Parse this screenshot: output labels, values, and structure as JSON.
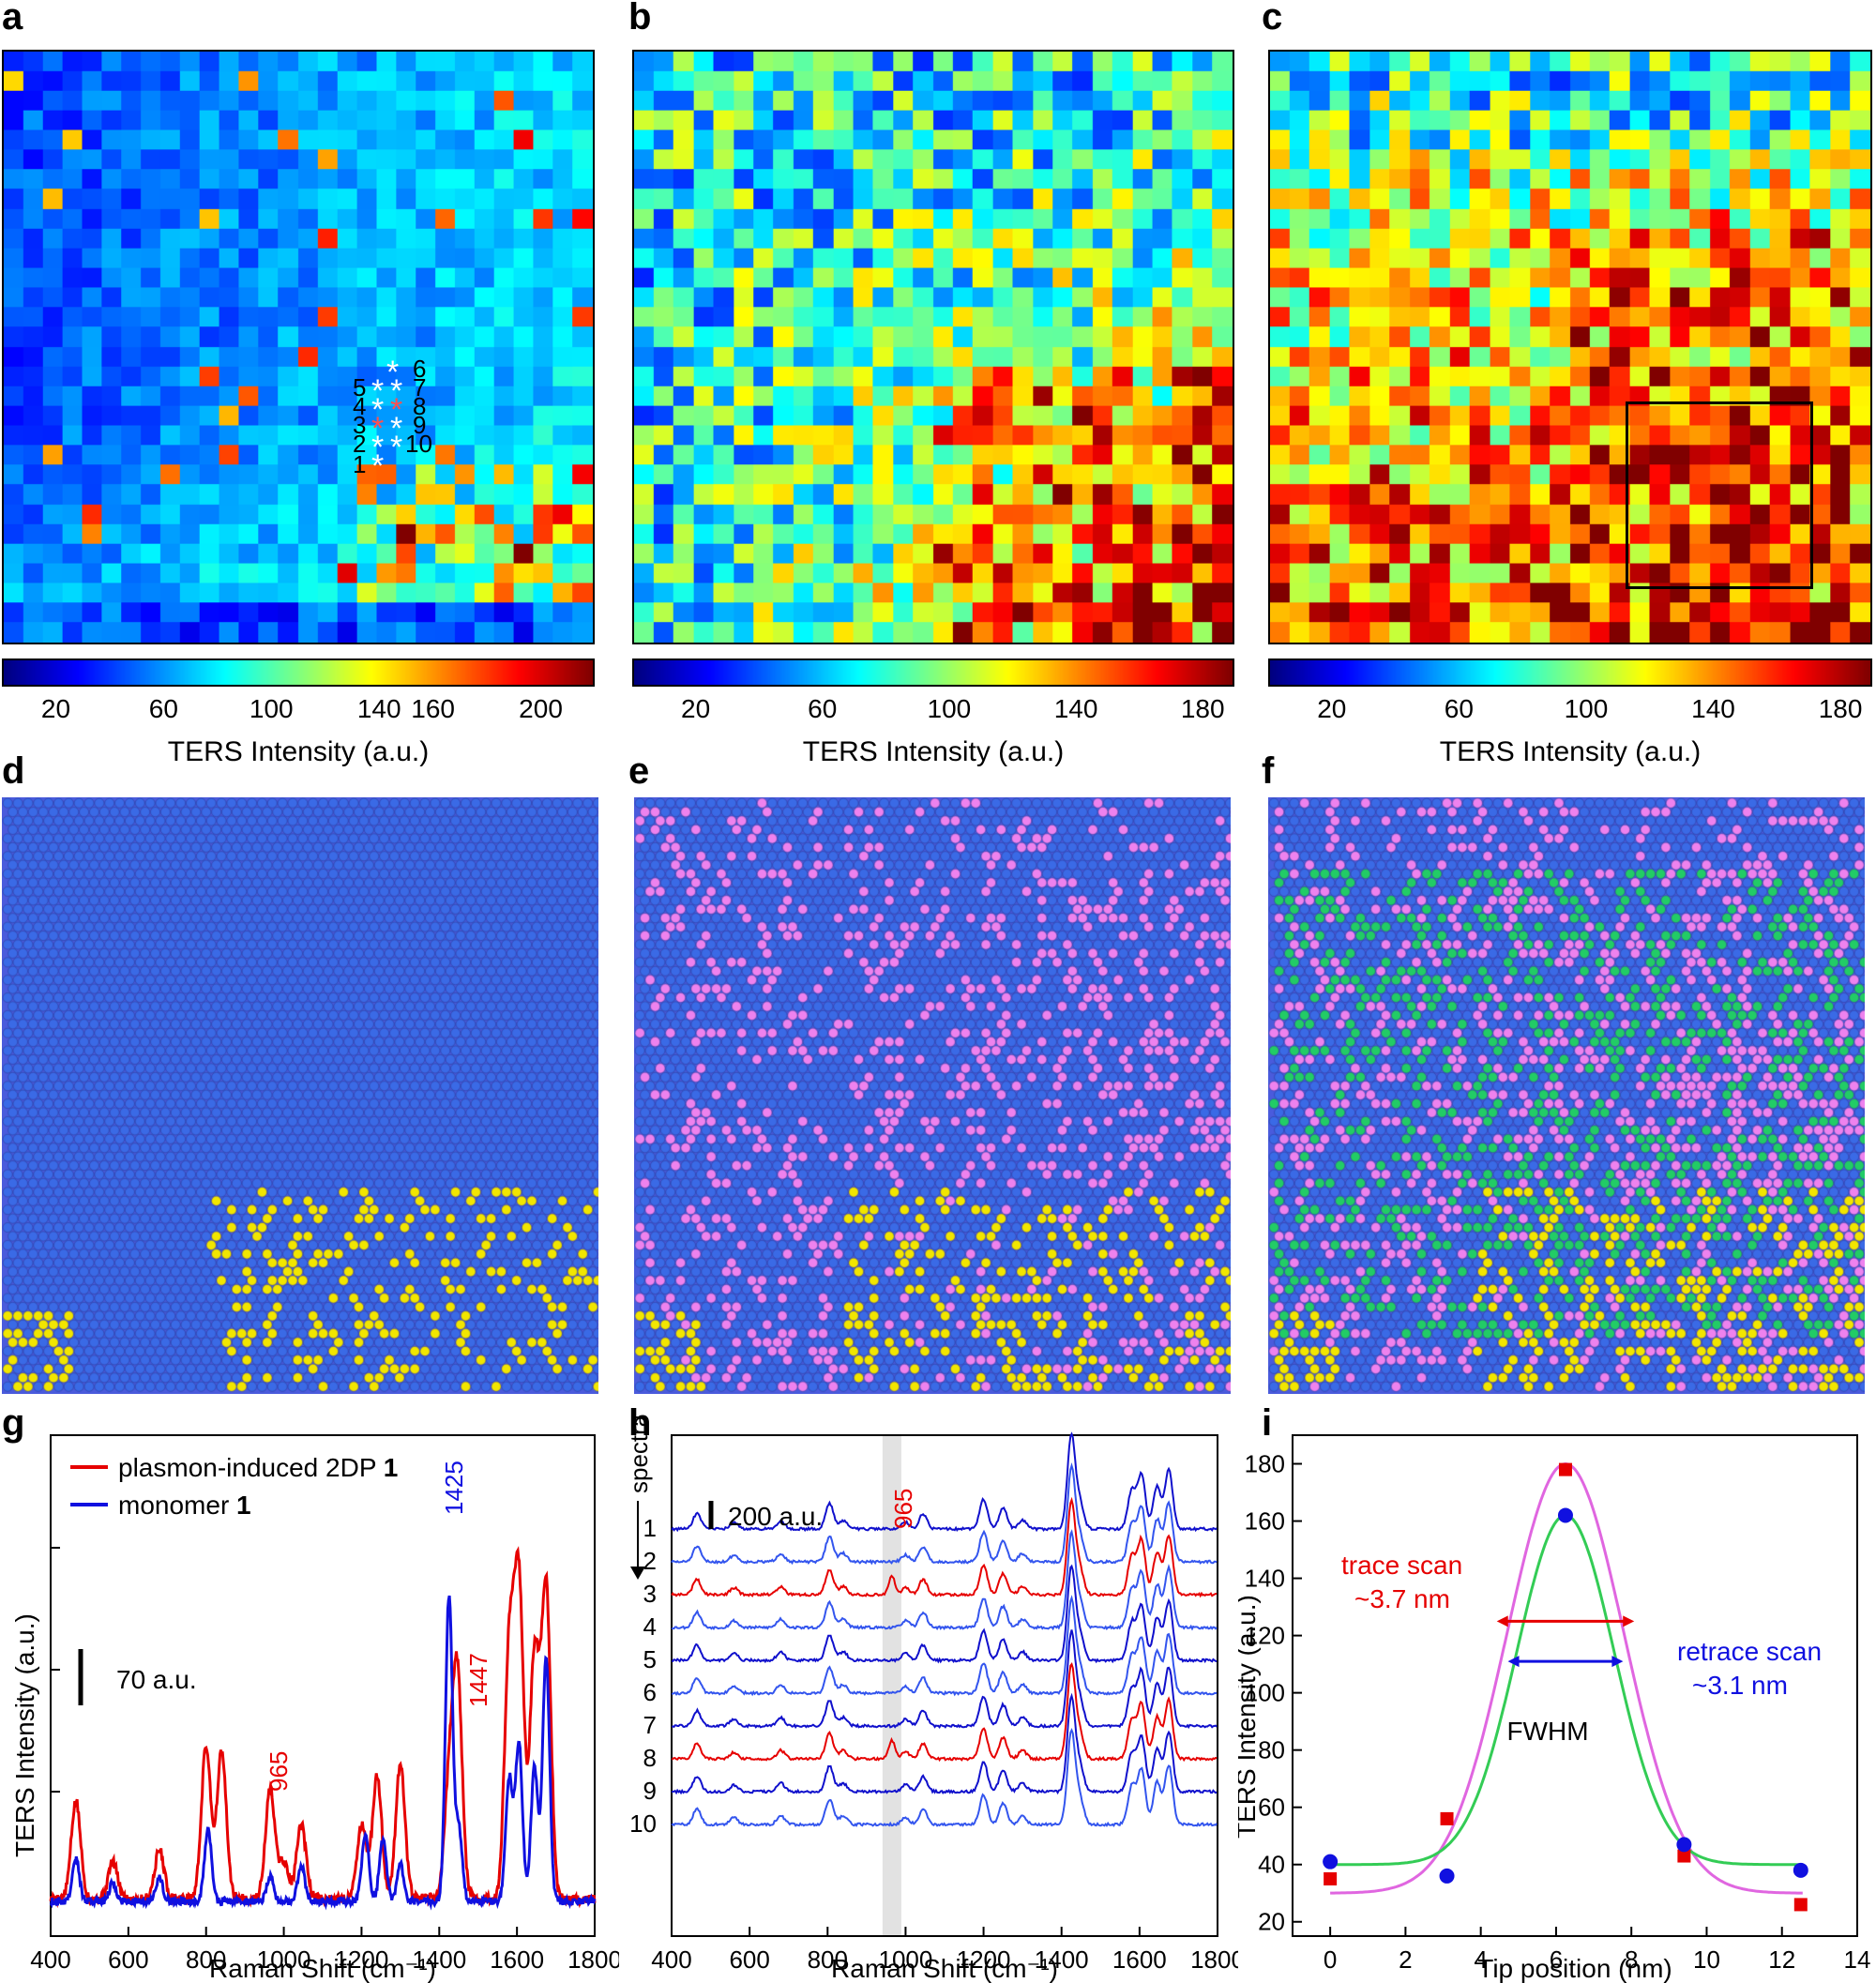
{
  "panel_labels": [
    "a",
    "b",
    "c",
    "d",
    "e",
    "f",
    "g",
    "h",
    "i"
  ],
  "colors": {
    "red": "#e60000",
    "blue": "#1010e0",
    "hex_bg": "#4a5bdc",
    "hex_blue": "#3a6ae6",
    "hex_yellow": "#f2e600",
    "hex_pink": "#ee82ee",
    "hex_green": "#22cc66",
    "magenta_fit": "#e066e0",
    "green_fit": "#33cc55"
  },
  "chart_data": [
    {
      "id": "a",
      "type": "heatmap",
      "colorbar": {
        "title": "TERS Intensity (a.u.)",
        "ticks": [
          "20",
          "60",
          "100",
          "140",
          "160",
          "200"
        ],
        "tick_values": [
          20,
          60,
          100,
          140,
          160,
          200
        ],
        "range": [
          0,
          220
        ]
      },
      "annotations": {
        "markers": [
          "1",
          "2",
          "3",
          "4",
          "5",
          "6",
          "7",
          "8",
          "9",
          "10"
        ],
        "star": "*"
      }
    },
    {
      "id": "b",
      "type": "heatmap",
      "colorbar": {
        "title": "TERS Intensity (a.u.)",
        "ticks": [
          "20",
          "60",
          "100",
          "140",
          "180"
        ],
        "tick_values": [
          20,
          60,
          100,
          140,
          180
        ],
        "range": [
          0,
          190
        ]
      }
    },
    {
      "id": "c",
      "type": "heatmap",
      "colorbar": {
        "title": "TERS Intensity (a.u.)",
        "ticks": [
          "20",
          "60",
          "100",
          "140",
          "180"
        ],
        "tick_values": [
          20,
          60,
          100,
          140,
          180
        ],
        "range": [
          0,
          190
        ]
      }
    },
    {
      "id": "d",
      "type": "heatmap",
      "description_classes": [
        "blue",
        "yellow"
      ]
    },
    {
      "id": "e",
      "type": "heatmap",
      "description_classes": [
        "blue",
        "yellow",
        "pink"
      ]
    },
    {
      "id": "f",
      "type": "heatmap",
      "description_classes": [
        "blue",
        "yellow",
        "pink",
        "green"
      ]
    },
    {
      "id": "g",
      "type": "line",
      "xlabel": "Raman Shift (cm⁻¹)",
      "ylabel": "TERS Intensity (a.u.)",
      "xlim": [
        400,
        1800
      ],
      "xticks": [
        "400",
        "600",
        "800",
        "1000",
        "1200",
        "1400",
        "1600",
        "1800"
      ],
      "legend": [
        {
          "name": "plasmon-induced 2DP ",
          "bold": "1",
          "color": "#e60000"
        },
        {
          "name": "monomer ",
          "bold": "1",
          "color": "#1010e0"
        }
      ],
      "scale_bar": "70 a.u.",
      "annotations": [
        {
          "text": "965",
          "x": 965,
          "color": "#e60000"
        },
        {
          "text": "1447",
          "x": 1447,
          "color": "#e60000"
        },
        {
          "text": "1425",
          "x": 1425,
          "color": "#1010e0"
        }
      ],
      "peaks_red": [
        [
          465,
          80
        ],
        [
          560,
          30
        ],
        [
          680,
          40
        ],
        [
          800,
          125
        ],
        [
          840,
          120
        ],
        [
          965,
          90
        ],
        [
          1000,
          30
        ],
        [
          1045,
          60
        ],
        [
          1200,
          60
        ],
        [
          1240,
          100
        ],
        [
          1300,
          110
        ],
        [
          1425,
          90
        ],
        [
          1447,
          180
        ],
        [
          1580,
          200
        ],
        [
          1605,
          255
        ],
        [
          1645,
          200
        ],
        [
          1675,
          255
        ]
      ],
      "peaks_blue": [
        [
          465,
          35
        ],
        [
          560,
          15
        ],
        [
          680,
          20
        ],
        [
          805,
          60
        ],
        [
          965,
          20
        ],
        [
          1045,
          30
        ],
        [
          1210,
          55
        ],
        [
          1255,
          50
        ],
        [
          1300,
          30
        ],
        [
          1425,
          250
        ],
        [
          1450,
          60
        ],
        [
          1580,
          100
        ],
        [
          1605,
          130
        ],
        [
          1645,
          110
        ],
        [
          1675,
          200
        ]
      ]
    },
    {
      "id": "h",
      "type": "line",
      "xlabel": "Raman Shift (cm⁻¹)",
      "xlim": [
        400,
        1800
      ],
      "xticks": [
        "400",
        "600",
        "800",
        "1000",
        "1200",
        "1400",
        "1600",
        "1800"
      ],
      "ylabel_arrow": "spectra",
      "scale_bar": "200 a.u.",
      "highlight": {
        "text": "965",
        "x": 965
      },
      "spectra_labels": [
        "1",
        "2",
        "3",
        "4",
        "5",
        "6",
        "7",
        "8",
        "9",
        "10"
      ],
      "red_spectra": [
        "3",
        "8"
      ]
    },
    {
      "id": "i",
      "type": "scatter",
      "xlabel": "Tip position (nm)",
      "ylabel": "TERS Intensity (a.u.)",
      "xlim": [
        -1,
        14
      ],
      "ylim": [
        15,
        190
      ],
      "xticks": [
        0,
        2,
        4,
        6,
        8,
        10,
        12,
        14
      ],
      "yticks": [
        20,
        40,
        60,
        80,
        100,
        120,
        140,
        160,
        180
      ],
      "series": [
        {
          "name": "trace scan",
          "color": "#e60000",
          "marker": "square",
          "x": [
            0,
            3.1,
            6.25,
            9.4,
            12.5
          ],
          "y": [
            35,
            56,
            178,
            43,
            26
          ]
        },
        {
          "name": "retrace scan",
          "color": "#1010e0",
          "marker": "circle",
          "x": [
            0,
            3.1,
            6.25,
            9.4,
            12.5
          ],
          "y": [
            41,
            36,
            162,
            47,
            38
          ]
        }
      ],
      "fits": [
        {
          "name": "trace fit",
          "color": "#e066e0",
          "baseline": 30,
          "amp": 150,
          "center": 6.25,
          "sigma": 1.55
        },
        {
          "name": "retrace fit",
          "color": "#33cc55",
          "baseline": 40,
          "amp": 122,
          "center": 6.25,
          "sigma": 1.3
        }
      ],
      "annotations": {
        "trace": "trace scan",
        "trace_val": "~3.7 nm",
        "retrace": "retrace scan",
        "retrace_val": "~3.1 nm",
        "fwhm": "FWHM"
      }
    }
  ]
}
